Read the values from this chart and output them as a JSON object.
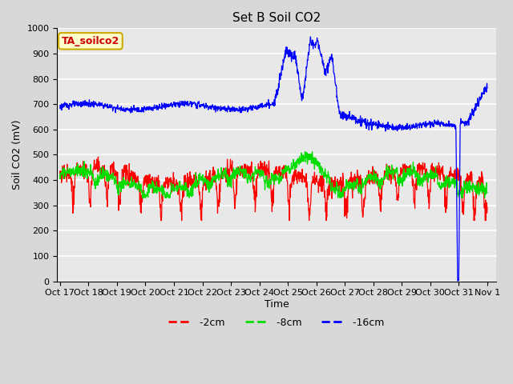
{
  "title": "Set B Soil CO2",
  "ylabel": "Soil CO2 (mV)",
  "xlabel": "Time",
  "ylim": [
    0,
    1000
  ],
  "yticks": [
    0,
    100,
    200,
    300,
    400,
    500,
    600,
    700,
    800,
    900,
    1000
  ],
  "xtick_labels": [
    "Oct 17",
    "Oct 18",
    "Oct 19",
    "Oct 20",
    "Oct 21",
    "Oct 22",
    "Oct 23",
    "Oct 24",
    "Oct 25",
    "Oct 26",
    "Oct 27",
    "Oct 28",
    "Oct 29",
    "Oct 30",
    "Oct 31",
    "Nov 1"
  ],
  "legend_label": "TA_soilco2",
  "legend_bg": "#ffffcc",
  "legend_border": "#ccaa00",
  "line_2cm_color": "#ff0000",
  "line_8cm_color": "#00dd00",
  "line_16cm_color": "#0000ff",
  "bg_color": "#e8e8e8",
  "grid_color": "#ffffff",
  "title_fontsize": 11,
  "label_fontsize": 9,
  "tick_fontsize": 8
}
